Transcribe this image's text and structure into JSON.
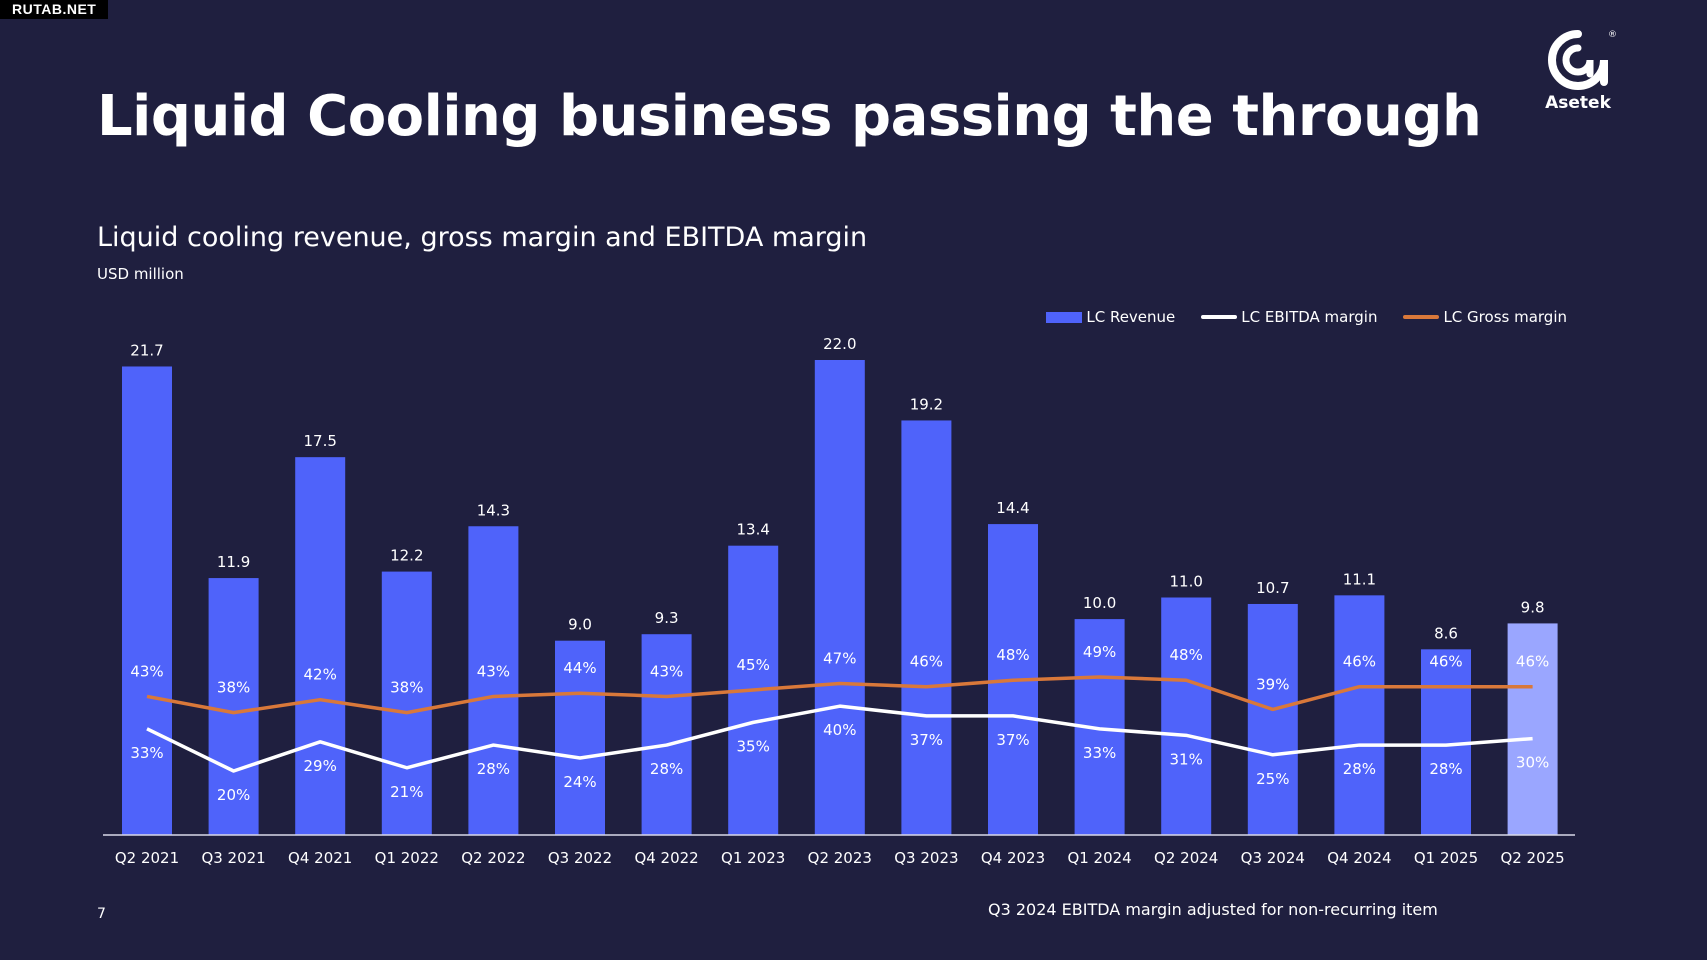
{
  "watermark": "RUTAB.NET",
  "slide_title": "Liquid Cooling business passing the through",
  "logo": {
    "icon": "asetek-logo-icon",
    "text": "Asetek",
    "registered": "®"
  },
  "page_number": "7",
  "footnote": "Q3 2024 EBITDA margin adjusted for non-recurring item",
  "legend": {
    "revenue": "LC Revenue",
    "ebitda": "LC EBITDA margin",
    "gross": "LC Gross margin"
  },
  "colors": {
    "background": "#1f1f3f",
    "revenue": "#4f63fa",
    "revenue_highlight": "#9aa6ff",
    "ebitda": "#ffffff",
    "gross": "#d9783a"
  },
  "chart_data": {
    "type": "bar",
    "title": "Liquid cooling revenue, gross margin and EBITDA margin",
    "subtitle": "USD million",
    "xlabel": "",
    "ylabel": "",
    "categories": [
      "Q2 2021",
      "Q3 2021",
      "Q4 2021",
      "Q1 2022",
      "Q2 2022",
      "Q3 2022",
      "Q4 2022",
      "Q1 2023",
      "Q2 2023",
      "Q3 2023",
      "Q4 2023",
      "Q1 2024",
      "Q2 2024",
      "Q3 2024",
      "Q4 2024",
      "Q1 2025",
      "Q2 2025"
    ],
    "series": [
      {
        "name": "LC Revenue",
        "type": "bar",
        "values": [
          21.7,
          11.9,
          17.5,
          12.2,
          14.3,
          9.0,
          9.3,
          13.4,
          22.0,
          19.2,
          14.4,
          10.0,
          11.0,
          10.7,
          11.1,
          8.6,
          9.8
        ],
        "labels": [
          "21.7",
          "11.9",
          "17.5",
          "12.2",
          "14.3",
          "9.0",
          "9.3",
          "13.4",
          "22.0",
          "19.2",
          "14.4",
          "10.0",
          "11.0",
          "10.7",
          "11.1",
          "8.6",
          "9.8"
        ]
      },
      {
        "name": "LC EBITDA margin",
        "type": "line",
        "values": [
          33,
          20,
          29,
          21,
          28,
          24,
          28,
          35,
          40,
          37,
          37,
          33,
          31,
          25,
          28,
          28,
          30
        ],
        "labels": [
          "33%",
          "20%",
          "29%",
          "21%",
          "28%",
          "24%",
          "28%",
          "35%",
          "40%",
          "37%",
          "37%",
          "33%",
          "31%",
          "25%",
          "28%",
          "28%",
          "30%"
        ]
      },
      {
        "name": "LC Gross margin",
        "type": "line",
        "values": [
          43,
          38,
          42,
          38,
          43,
          44,
          43,
          45,
          47,
          46,
          48,
          49,
          48,
          39,
          46,
          46,
          46
        ],
        "labels": [
          "43%",
          "38%",
          "42%",
          "38%",
          "43%",
          "44%",
          "43%",
          "45%",
          "47%",
          "46%",
          "48%",
          "49%",
          "48%",
          "39%",
          "46%",
          "46%",
          "46%"
        ]
      }
    ],
    "highlight_last": true,
    "legend_position": "top-right",
    "grid": false
  }
}
